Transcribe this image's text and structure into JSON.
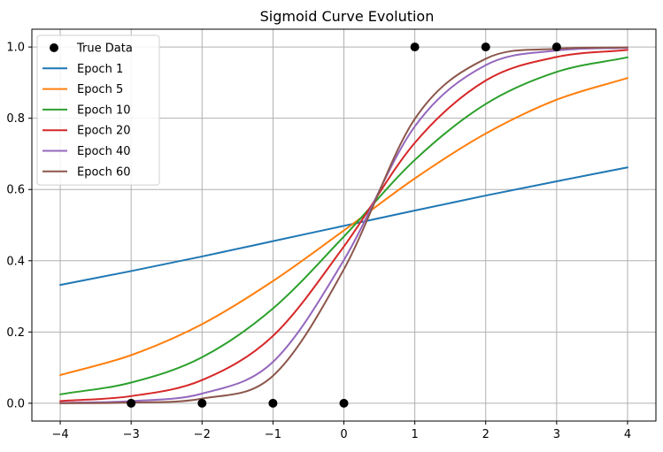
{
  "chart_data": {
    "type": "line",
    "title": "Sigmoid Curve Evolution",
    "xlabel": "",
    "ylabel": "",
    "xlim": [
      -4.4,
      4.4
    ],
    "ylim": [
      -0.05,
      1.05
    ],
    "xticks": [
      -4,
      -3,
      -2,
      -1,
      0,
      1,
      2,
      3,
      4
    ],
    "xtick_labels": [
      "−4",
      "−3",
      "−2",
      "−1",
      "0",
      "1",
      "2",
      "3",
      "4"
    ],
    "yticks": [
      0.0,
      0.2,
      0.4,
      0.6,
      0.8,
      1.0
    ],
    "ytick_labels": [
      "0.0",
      "0.2",
      "0.4",
      "0.6",
      "0.8",
      "1.0"
    ],
    "grid": true,
    "legend_position": "top-left",
    "scatter": {
      "name": "True Data",
      "color": "#000000",
      "x": [
        -3,
        -2,
        -1,
        0,
        1,
        2,
        3
      ],
      "y": [
        0,
        0,
        0,
        0,
        1,
        1,
        1
      ]
    },
    "series": [
      {
        "name": "Epoch 1",
        "color": "#1f77b4",
        "x": [
          -4,
          -3,
          -2,
          -1,
          0,
          1,
          2,
          3,
          4
        ],
        "y": [
          0.332,
          0.371,
          0.412,
          0.455,
          0.498,
          0.541,
          0.583,
          0.623,
          0.662
        ]
      },
      {
        "name": "Epoch 5",
        "color": "#ff7f0e",
        "x": [
          -4,
          -3,
          -2,
          -1,
          0,
          1,
          2,
          3,
          4
        ],
        "y": [
          0.079,
          0.135,
          0.222,
          0.343,
          0.485,
          0.631,
          0.757,
          0.852,
          0.913
        ]
      },
      {
        "name": "Epoch 10",
        "color": "#2ca02c",
        "x": [
          -4,
          -3,
          -2,
          -1,
          0,
          1,
          2,
          3,
          4
        ],
        "y": [
          0.025,
          0.058,
          0.129,
          0.266,
          0.468,
          0.683,
          0.84,
          0.93,
          0.971
        ]
      },
      {
        "name": "Epoch 20",
        "color": "#d62728",
        "x": [
          -4,
          -3,
          -2,
          -1,
          0,
          1,
          2,
          3,
          4
        ],
        "y": [
          0.006,
          0.02,
          0.065,
          0.189,
          0.44,
          0.731,
          0.906,
          0.972,
          0.992
        ]
      },
      {
        "name": "Epoch 40",
        "color": "#9467bd",
        "x": [
          -4,
          -3,
          -2,
          -1,
          0,
          1,
          2,
          3,
          4
        ],
        "y": [
          0.001,
          0.006,
          0.027,
          0.116,
          0.402,
          0.777,
          0.949,
          0.99,
          0.998
        ]
      },
      {
        "name": "Epoch 60",
        "color": "#8c564b",
        "x": [
          -4,
          -3,
          -2,
          -1,
          0,
          1,
          2,
          3,
          4
        ],
        "y": [
          0.0,
          0.002,
          0.013,
          0.077,
          0.376,
          0.798,
          0.967,
          0.995,
          0.999
        ]
      }
    ]
  }
}
